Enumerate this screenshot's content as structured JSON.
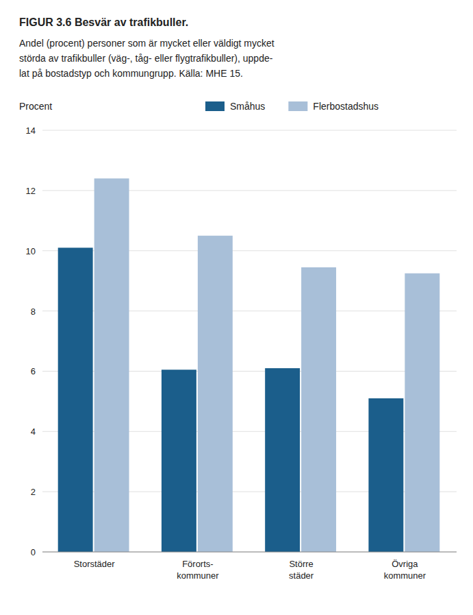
{
  "chart_data": {
    "type": "bar",
    "title": "FIGUR 3.6 Besvär av trafikbuller.",
    "subtitle": [
      "Andel (procent) personer som är mycket eller väldigt mycket",
      "störda av trafikbuller (väg-, tåg- eller flygtrafikbuller), uppde-",
      "lat på bostadstyp och kommungrupp. Källa: MHE 15."
    ],
    "y_label": "Procent",
    "categories": [
      "Storstäder",
      "Förorts-\nkommuner",
      "Större\nstäder",
      "Övriga\nkommuner"
    ],
    "series": [
      {
        "name": "Småhus",
        "color": "#1b5e8b",
        "values": [
          10.1,
          6.05,
          6.1,
          5.1
        ]
      },
      {
        "name": "Flerbostadshus",
        "color": "#a8bfd8",
        "values": [
          12.4,
          10.5,
          9.45,
          9.25
        ]
      }
    ],
    "ylim": [
      0,
      14
    ],
    "yticks": [
      0,
      2,
      4,
      6,
      8,
      10,
      12,
      14
    ],
    "grid": true,
    "legend": "top"
  }
}
